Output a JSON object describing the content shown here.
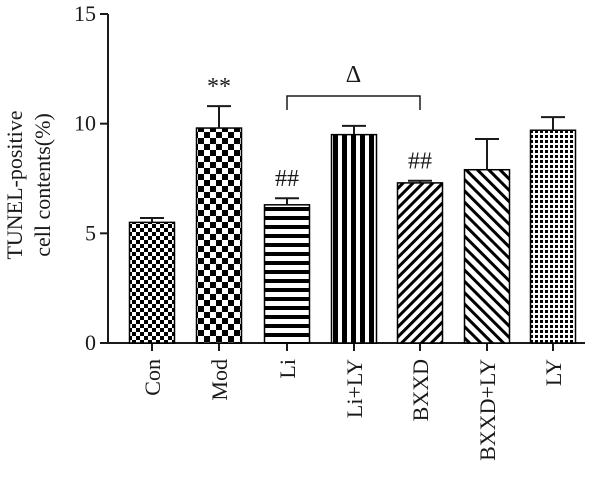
{
  "chart_data": {
    "type": "bar",
    "title": "",
    "xlabel": "",
    "ylabel_line1": "TUNEL-positive",
    "ylabel_line2": "cell contents(%)",
    "ylim": [
      0,
      15
    ],
    "yticks": [
      "0",
      "5",
      "10",
      "15"
    ],
    "categories": [
      "Con",
      "Mod",
      "Li",
      "Li+LY",
      "BXXD",
      "BXXD+LY",
      "LY"
    ],
    "values": [
      5.5,
      9.8,
      6.3,
      9.5,
      7.3,
      7.9,
      9.7
    ],
    "errors": [
      0.2,
      1.0,
      0.3,
      0.4,
      0.1,
      1.4,
      0.6
    ],
    "patterns": [
      "fine-checker",
      "checker",
      "h-stripes",
      "v-stripes",
      "diag-right",
      "diag-left",
      "grid"
    ],
    "annotations": [
      "**",
      "##",
      "##"
    ],
    "bracket_label": "Δ",
    "bar_color": "#000000",
    "background": "#ffffff"
  }
}
